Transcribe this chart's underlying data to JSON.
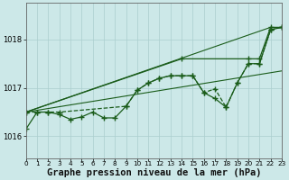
{
  "bg_color": "#cce8e8",
  "grid_color": "#aacece",
  "line_color": "#1a5c1a",
  "xlabel": "Graphe pression niveau de la mer (hPa)",
  "xlabel_fontsize": 7.5,
  "ylabel_values": [
    1016,
    1017,
    1018
  ],
  "xmin": 0,
  "xmax": 23,
  "ymin": 1015.55,
  "ymax": 1018.75,
  "series": [
    {
      "x": [
        0,
        1,
        2,
        3,
        4,
        5,
        6,
        7,
        8,
        9,
        10,
        11,
        12,
        13,
        14,
        15,
        16,
        17,
        18,
        19,
        20,
        21,
        22,
        23
      ],
      "y": [
        1016.15,
        1016.5,
        1016.5,
        1016.45,
        1016.35,
        1016.4,
        1016.5,
        1016.38,
        1016.38,
        1016.62,
        1016.95,
        1017.1,
        1017.2,
        1017.25,
        1017.25,
        1017.25,
        1016.9,
        1016.78,
        1016.6,
        1017.1,
        1017.5,
        1017.5,
        1018.2,
        1018.25
      ],
      "marker": "+",
      "markersize": 4,
      "linewidth": 0.9,
      "linestyle": "-"
    },
    {
      "x": [
        0,
        22
      ],
      "y": [
        1016.5,
        1018.25
      ],
      "marker": null,
      "markersize": 0,
      "linewidth": 0.8,
      "linestyle": "-"
    },
    {
      "x": [
        0,
        23
      ],
      "y": [
        1016.5,
        1017.35
      ],
      "marker": null,
      "markersize": 0,
      "linewidth": 0.8,
      "linestyle": "-"
    },
    {
      "x": [
        0,
        1,
        2,
        3,
        9,
        10,
        11,
        12,
        13,
        14,
        15,
        16,
        17,
        18,
        19,
        20,
        21,
        22,
        23
      ],
      "y": [
        1016.5,
        1016.5,
        1016.5,
        1016.5,
        1016.62,
        1016.95,
        1017.1,
        1017.2,
        1017.25,
        1017.25,
        1017.25,
        1016.9,
        1016.98,
        1016.6,
        1017.1,
        1017.5,
        1017.5,
        1018.2,
        1018.25
      ],
      "marker": "+",
      "markersize": 4,
      "linewidth": 0.9,
      "linestyle": "--"
    },
    {
      "x": [
        0,
        14,
        20,
        21,
        22,
        23
      ],
      "y": [
        1016.5,
        1017.6,
        1017.6,
        1017.6,
        1018.25,
        1018.25
      ],
      "marker": "+",
      "markersize": 4,
      "linewidth": 0.9,
      "linestyle": "-"
    }
  ]
}
